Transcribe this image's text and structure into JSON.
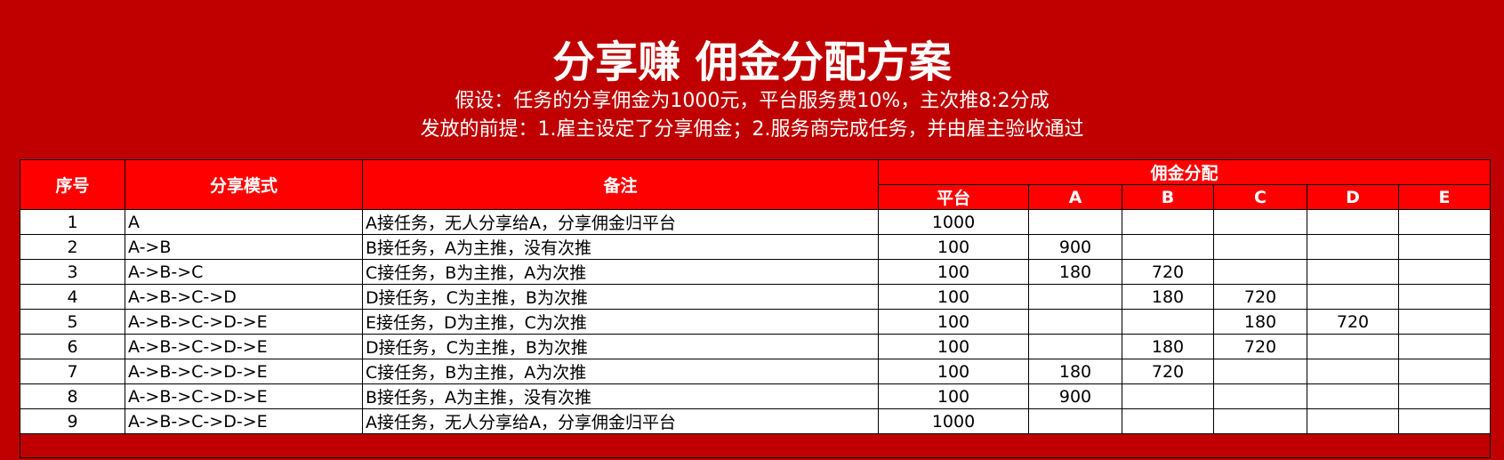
{
  "title": "分享赚 佣金分配方案",
  "subtitle1": "假设：任务的分享佣金为1000元，平台服务费10%，主次推8:2分成",
  "subtitle2": "发放的前提：1.雇主设定了分享佣金；2.服务商完成任务，并由雇主验收通过",
  "colors": {
    "background": "#c00000",
    "header": "#ff0000"
  },
  "table": {
    "headers": {
      "no": "序号",
      "mode": "分享模式",
      "note": "备注",
      "commission": "佣金分配",
      "sub": [
        "平台",
        "A",
        "B",
        "C",
        "D",
        "E"
      ]
    },
    "rows": [
      [
        "1",
        "A",
        "A接任务，无人分享给A，分享佣金归平台",
        "1000",
        "",
        "",
        "",
        "",
        ""
      ],
      [
        "2",
        "A->B",
        "B接任务，A为主推，没有次推",
        "100",
        "900",
        "",
        "",
        "",
        ""
      ],
      [
        "3",
        "A->B->C",
        "C接任务，B为主推，A为次推",
        "100",
        "180",
        "720",
        "",
        "",
        ""
      ],
      [
        "4",
        "A->B->C->D",
        "D接任务，C为主推，B为次推",
        "100",
        "",
        "180",
        "720",
        "",
        ""
      ],
      [
        "5",
        "A->B->C->D->E",
        "E接任务，D为主推，C为次推",
        "100",
        "",
        "",
        "180",
        "720",
        ""
      ],
      [
        "6",
        "A->B->C->D->E",
        "D接任务，C为主推，B为次推",
        "100",
        "",
        "180",
        "720",
        "",
        ""
      ],
      [
        "7",
        "A->B->C->D->E",
        "C接任务，B为主推，A为次推",
        "100",
        "180",
        "720",
        "",
        "",
        ""
      ],
      [
        "8",
        "A->B->C->D->E",
        "B接任务，A为主推，没有次推",
        "100",
        "900",
        "",
        "",
        "",
        ""
      ],
      [
        "9",
        "A->B->C->D->E",
        "A接任务，无人分享给A，分享佣金归平台",
        "1000",
        "",
        "",
        "",
        "",
        ""
      ]
    ]
  }
}
